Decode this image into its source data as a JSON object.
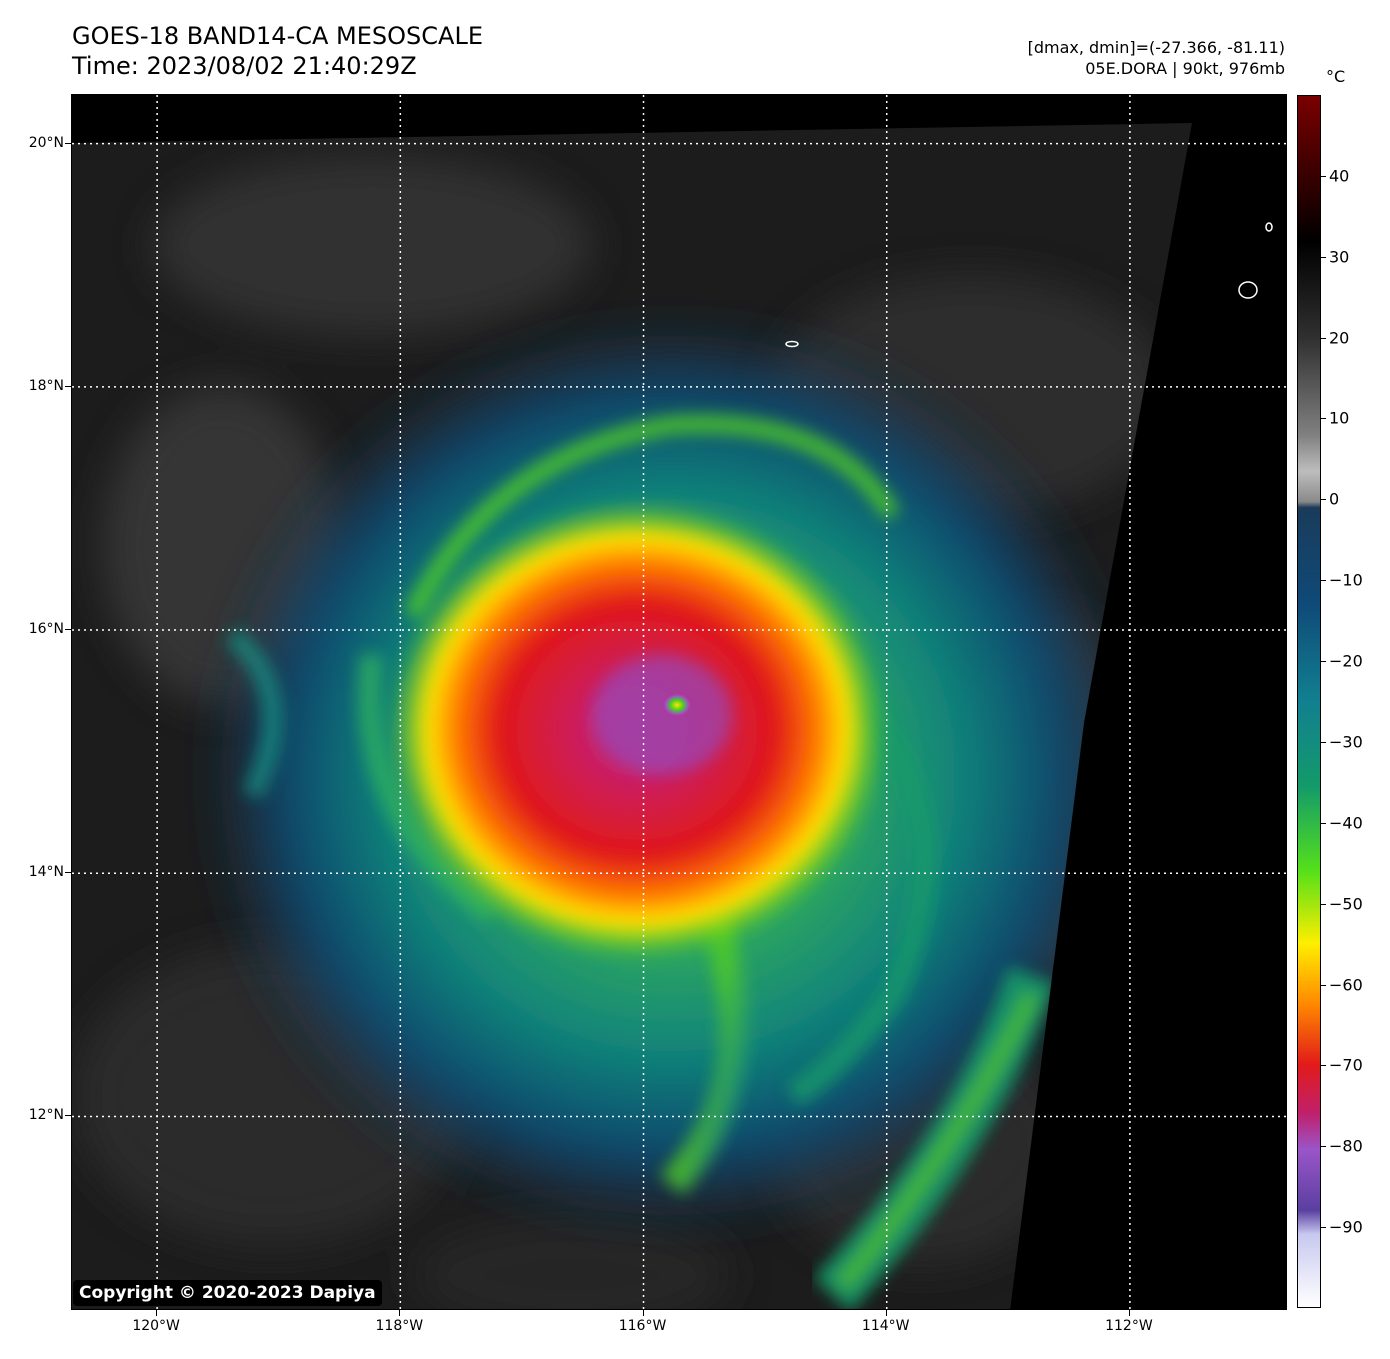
{
  "header": {
    "title_line1": "GOES-18 BAND14-CA MESOSCALE",
    "title_line2": "Time: 2023/08/02 21:40:29Z",
    "info_line1": "[dmax, dmin]=(-27.366, -81.11)",
    "info_line2": "05E.DORA | 90kt, 976mb"
  },
  "map": {
    "lat_labels": [
      "20°N",
      "18°N",
      "16°N",
      "14°N",
      "12°N"
    ],
    "lon_labels": [
      "120°W",
      "118°W",
      "116°W",
      "114°W",
      "112°W"
    ],
    "lat_values": [
      20,
      18,
      16,
      14,
      12
    ],
    "lon_values": [
      -120,
      -118,
      -116,
      -114,
      -112
    ],
    "lat_range": [
      10.4,
      20.4
    ],
    "lon_range": [
      -120.7,
      -110.7
    ],
    "storm_center": {
      "lat": 15.4,
      "lon": -115.7
    },
    "grid": "dotted white"
  },
  "colorbar": {
    "unit": "°C",
    "ticks": [
      "40",
      "30",
      "20",
      "10",
      "0",
      "−10",
      "−20",
      "−30",
      "−40",
      "−50",
      "−60",
      "−70",
      "−80",
      "−90"
    ],
    "tick_values": [
      40,
      30,
      20,
      10,
      0,
      -10,
      -20,
      -30,
      -40,
      -50,
      -60,
      -70,
      -80,
      -90
    ],
    "range": [
      -100,
      50
    ],
    "colors": [
      "#ffffff",
      "#5a3fa0",
      "#9a55c8",
      "#c0206b",
      "#e21a1a",
      "#ff8800",
      "#ffee00",
      "#55e01a",
      "#139a6a",
      "#118090",
      "#0f4a78",
      "#1a3b5a",
      "#808080",
      "#cfcfcf",
      "#000000",
      "#7a0000"
    ]
  },
  "copyright": "Copyright © 2020-2023 Dapiya"
}
